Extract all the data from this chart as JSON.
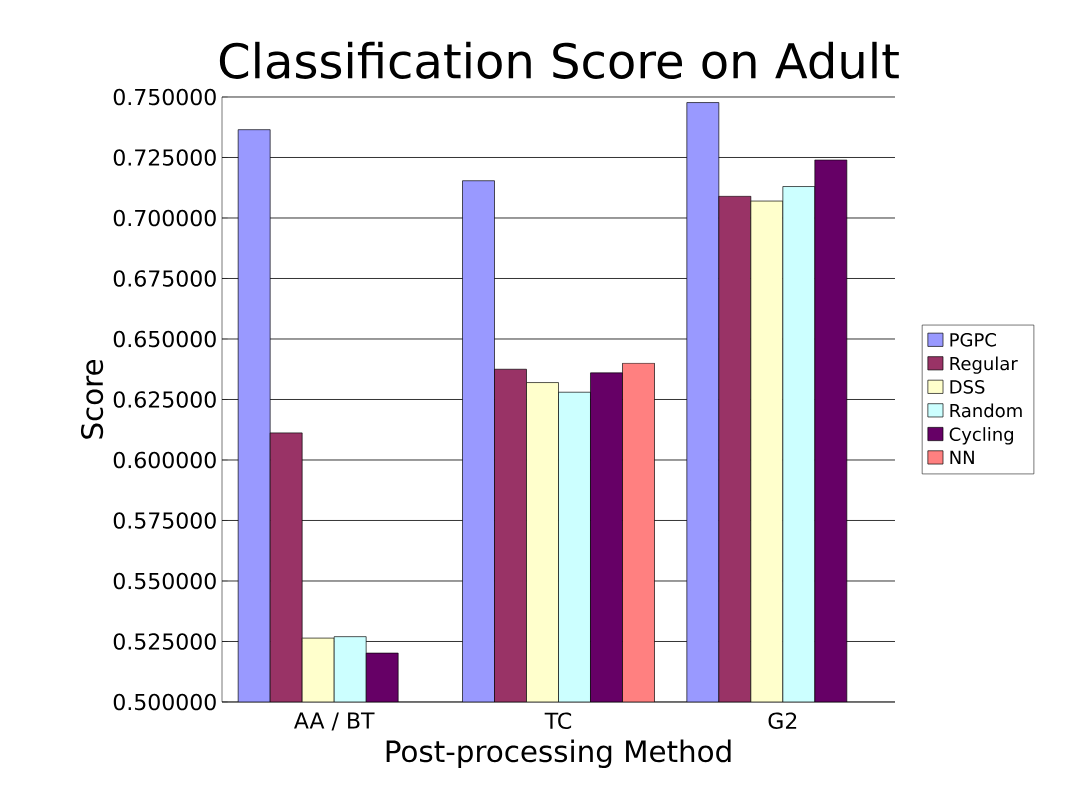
{
  "chart_data": {
    "type": "bar",
    "title": "Classification Score on Adult",
    "xlabel": "Post-processing Method",
    "ylabel": "Score",
    "categories": [
      "AA / BT",
      "TC",
      "G2"
    ],
    "series": [
      {
        "name": "PGPC",
        "color": "#9999ff",
        "values": [
          0.7365,
          0.7154,
          0.7477
        ]
      },
      {
        "name": "Regular",
        "color": "#993366",
        "values": [
          0.6112,
          0.6375,
          0.709
        ]
      },
      {
        "name": "DSS",
        "color": "#ffffcc",
        "values": [
          0.5264,
          0.632,
          0.707
        ]
      },
      {
        "name": "Random",
        "color": "#ccffff",
        "values": [
          0.527,
          0.628,
          0.713
        ]
      },
      {
        "name": "Cycling",
        "color": "#660066",
        "values": [
          0.5202,
          0.636,
          0.724
        ]
      },
      {
        "name": "NN",
        "color": "#ff8080",
        "values": [
          null,
          0.64,
          null
        ]
      }
    ],
    "ylim": [
      0.5,
      0.75
    ],
    "yticks": [
      {
        "value": 0.5,
        "label": "0.500000"
      },
      {
        "value": 0.525,
        "label": "0.525000"
      },
      {
        "value": 0.55,
        "label": "0.550000"
      },
      {
        "value": 0.575,
        "label": "0.575000"
      },
      {
        "value": 0.6,
        "label": "0.600000"
      },
      {
        "value": 0.625,
        "label": "0.625000"
      },
      {
        "value": 0.65,
        "label": "0.650000"
      },
      {
        "value": 0.675,
        "label": "0.675000"
      },
      {
        "value": 0.7,
        "label": "0.700000"
      },
      {
        "value": 0.725,
        "label": "0.725000"
      },
      {
        "value": 0.75,
        "label": "0.750000"
      }
    ],
    "grid": "y",
    "legend": "right"
  }
}
